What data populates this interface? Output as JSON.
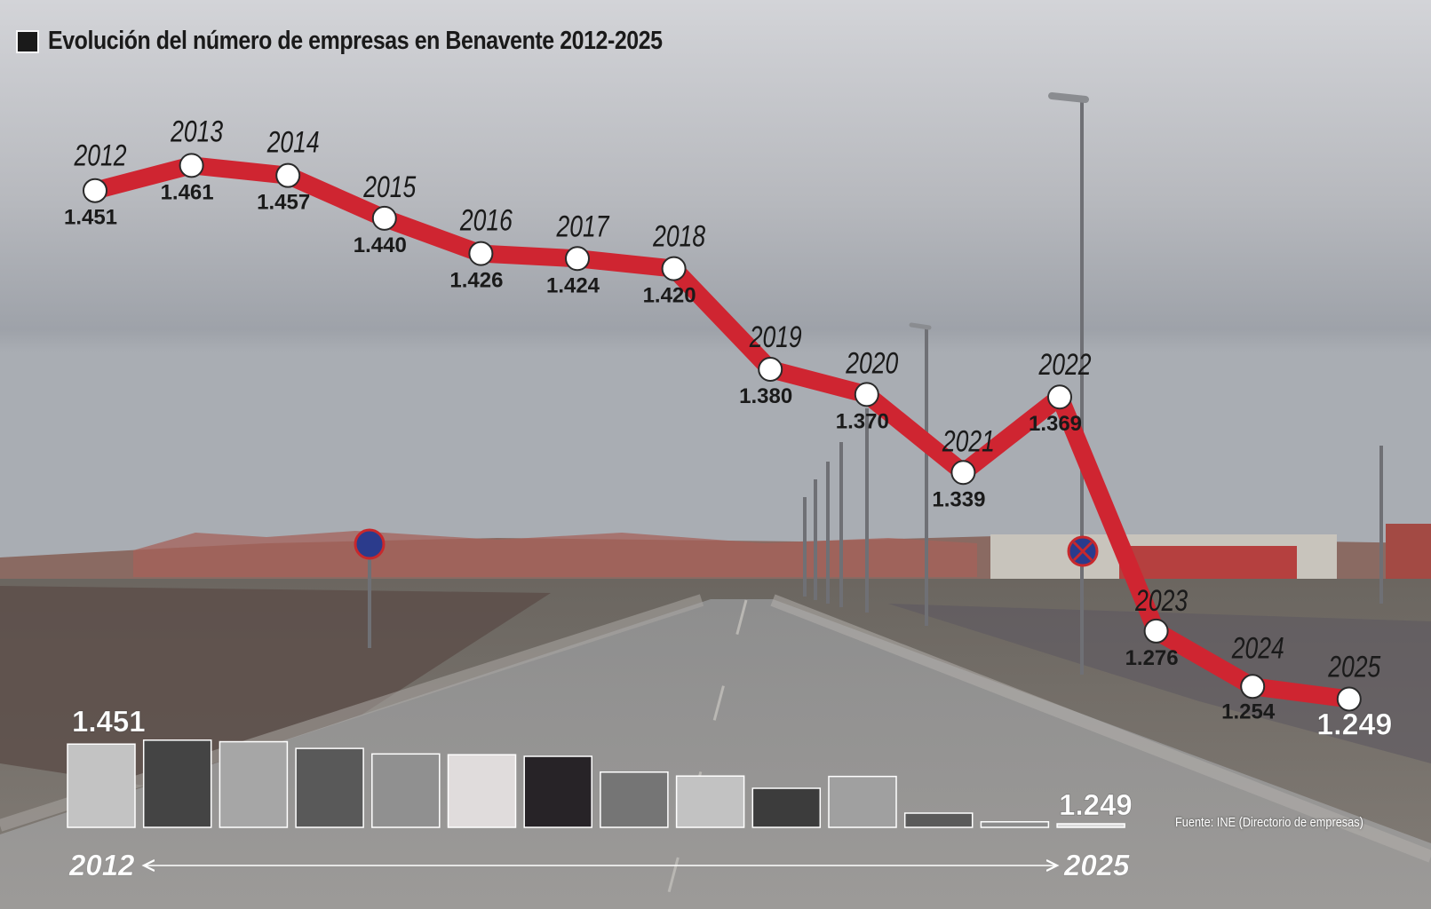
{
  "title": "Evolución del número de empresas en Benavente 2012-2025",
  "source": "Fuente: INE (Directorio de empresas)",
  "colors": {
    "line": "#cf2531",
    "marker": "#ffffff",
    "text": "#1a1a1a"
  },
  "chart_data": [
    {
      "type": "line",
      "x": [
        "2012",
        "2013",
        "2014",
        "2015",
        "2016",
        "2017",
        "2018",
        "2019",
        "2020",
        "2021",
        "2022",
        "2023",
        "2024",
        "2025"
      ],
      "values": [
        1451,
        1461,
        1457,
        1440,
        1426,
        1424,
        1420,
        1380,
        1370,
        1339,
        1369,
        1276,
        1254,
        1249
      ],
      "value_labels": [
        "1.451",
        "1.461",
        "1.457",
        "1.440",
        "1.426",
        "1.424",
        "1.420",
        "1.380",
        "1.370",
        "1.339",
        "1.369",
        "1.276",
        "1.254",
        "1.249"
      ],
      "ylim": [
        1240,
        1465
      ],
      "grid": false
    },
    {
      "type": "bar",
      "values": [
        1451,
        1461,
        1457,
        1440,
        1426,
        1424,
        1420,
        1380,
        1370,
        1339,
        1369,
        1276,
        1254,
        1249
      ],
      "colors": [
        "#c3c3c3",
        "#444444",
        "#a6a6a6",
        "#595959",
        "#909090",
        "#e0dcdc",
        "#272327",
        "#757575",
        "#c2c2c2",
        "#3c3c3c",
        "#a0a0a0",
        "#5a5a5a",
        "#8c8c8c",
        "#d9d9d9"
      ],
      "first_label": "1.451",
      "last_label": "1.249",
      "axis_start": "2012",
      "axis_end": "2025",
      "ylim": [
        1240,
        1465
      ]
    }
  ]
}
